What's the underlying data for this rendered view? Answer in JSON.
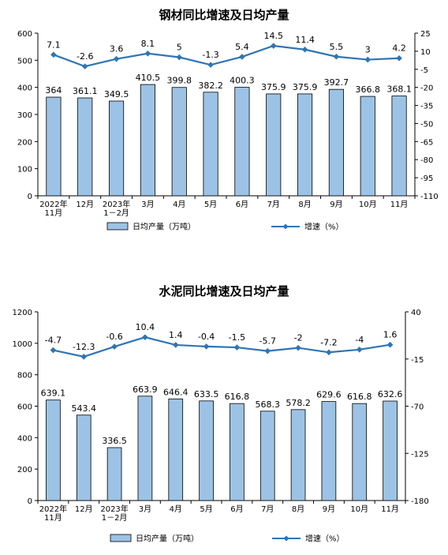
{
  "chart_data": [
    {
      "type": "bar",
      "title": "钢材同比增速及日均产量",
      "categories": [
        [
          "2022年",
          "11月"
        ],
        [
          "12月"
        ],
        [
          "2023年",
          "1－2月"
        ],
        [
          "3月"
        ],
        [
          "4月"
        ],
        [
          "5月"
        ],
        [
          "6月"
        ],
        [
          "7月"
        ],
        [
          "8月"
        ],
        [
          "9月"
        ],
        [
          "10月"
        ],
        [
          "11月"
        ]
      ],
      "series": [
        {
          "name": "日均产量（万吨）",
          "type": "bar",
          "axis": "left",
          "color": "#9cc3e5",
          "values": [
            364.0,
            361.1,
            349.5,
            410.5,
            399.8,
            382.2,
            400.3,
            375.9,
            375.9,
            392.7,
            366.8,
            368.1
          ]
        },
        {
          "name": "增速（%）",
          "type": "line",
          "axis": "right",
          "color": "#2e75b6",
          "values": [
            7.1,
            -2.6,
            3.6,
            8.1,
            5.0,
            -1.3,
            5.4,
            14.5,
            11.4,
            5.5,
            3.0,
            4.2
          ]
        }
      ],
      "y_left": {
        "min": 0,
        "max": 600,
        "ticks": [
          0,
          100,
          200,
          300,
          400,
          500,
          600
        ]
      },
      "y_right": {
        "min": -110,
        "max": 25,
        "ticks": [
          25,
          10,
          -5,
          -20,
          -35,
          -50,
          -65,
          -80,
          -95,
          -110
        ]
      },
      "grid": false,
      "legend": "bottom"
    },
    {
      "type": "bar",
      "title": "水泥同比增速及日均产量",
      "categories": [
        [
          "2022年",
          "11月"
        ],
        [
          "12月"
        ],
        [
          "2023年",
          "1－2月"
        ],
        [
          "3月"
        ],
        [
          "4月"
        ],
        [
          "5月"
        ],
        [
          "6月"
        ],
        [
          "7月"
        ],
        [
          "8月"
        ],
        [
          "9月"
        ],
        [
          "10月"
        ],
        [
          "11月"
        ]
      ],
      "series": [
        {
          "name": "日均产量（万吨）",
          "type": "bar",
          "axis": "left",
          "color": "#9cc3e5",
          "values": [
            639.1,
            543.4,
            336.5,
            663.9,
            646.4,
            633.5,
            616.8,
            568.3,
            578.2,
            629.6,
            616.8,
            632.6
          ]
        },
        {
          "name": "增速（%）",
          "type": "line",
          "axis": "right",
          "color": "#2e75b6",
          "values": [
            -4.7,
            -12.3,
            -0.6,
            10.4,
            1.4,
            -0.4,
            -1.5,
            -5.7,
            -2.0,
            -7.2,
            -4.0,
            1.6
          ]
        }
      ],
      "y_left": {
        "min": 0,
        "max": 1200,
        "ticks": [
          0,
          200,
          400,
          600,
          800,
          1000,
          1200
        ]
      },
      "y_right": {
        "min": -180,
        "max": 40,
        "ticks": [
          40,
          -15,
          -70,
          -125,
          -180
        ]
      },
      "grid": false,
      "legend": "bottom"
    }
  ]
}
